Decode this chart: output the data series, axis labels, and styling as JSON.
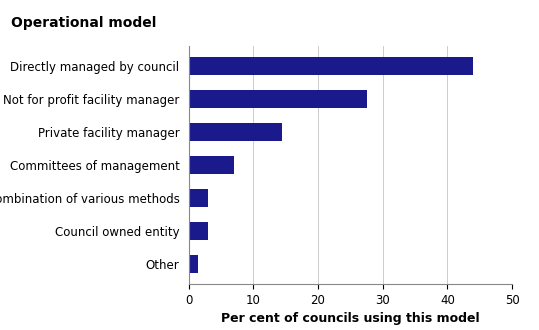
{
  "title": "Operational model",
  "categories": [
    "Other",
    "Council owned entity",
    "Combination of various methods",
    "Committees of management",
    "Private facility manager",
    "Not for profit facility manager",
    "Directly managed by council"
  ],
  "values": [
    1.5,
    3.0,
    3.0,
    7.0,
    14.5,
    27.5,
    44.0
  ],
  "bar_color": "#1a1a8c",
  "xlabel": "Per cent of councils using this model",
  "xlim": [
    0,
    50
  ],
  "xticks": [
    0,
    10,
    20,
    30,
    40,
    50
  ],
  "background_color": "#ffffff",
  "title_fontsize": 10,
  "label_fontsize": 8.5,
  "tick_fontsize": 8.5,
  "xlabel_fontsize": 9
}
